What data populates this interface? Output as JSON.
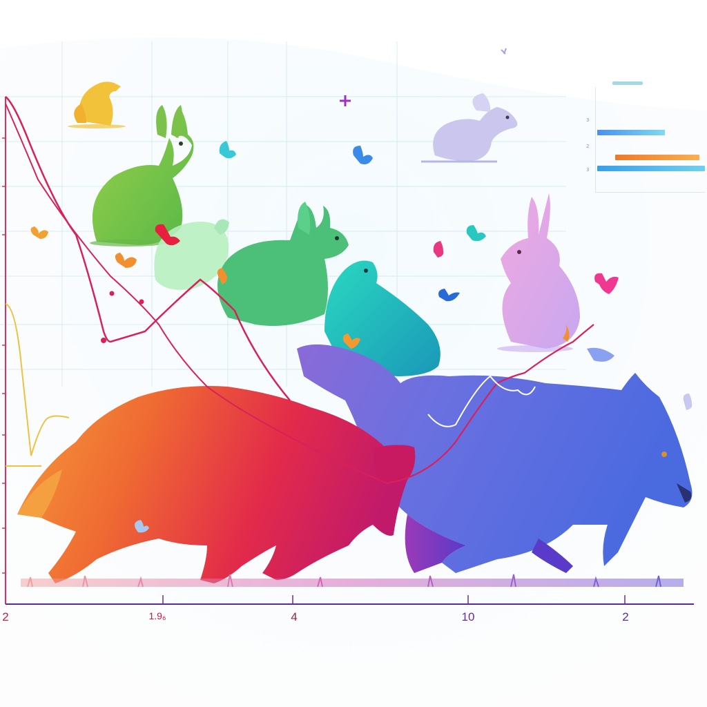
{
  "axis": {
    "x_tick_labels": [
      "2",
      "1.9₆",
      "4",
      "10",
      "2"
    ],
    "tick_colors": [
      "#c0204a",
      "#c01848",
      "#a81a50",
      "#6a2a9a",
      "#5a2a9a"
    ]
  },
  "legend_box": {
    "row_digits": [
      "3",
      "2",
      "3"
    ],
    "bar_colors": [
      "#58a8e8",
      "#f09028",
      "#38a8e8"
    ]
  },
  "palette": {
    "fox": "#e63a3a",
    "wolf": "#6a5ad8",
    "line_main": "#d8205a",
    "line_yellow": "#f0c040",
    "x_axis": "#5a2a9a",
    "y_axis": "#d83060"
  },
  "figures": [
    "small-yellow-squirrel",
    "green-rabbit",
    "mint-rabbit",
    "green-rabbit-front",
    "teal-hare",
    "lavender-rabbit",
    "pink-rabbit",
    "red-orange-fox",
    "blue-violet-wolf",
    "butterflies"
  ]
}
